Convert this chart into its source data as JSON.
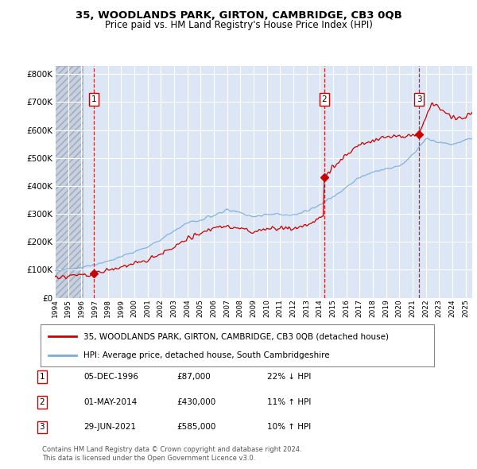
{
  "title": "35, WOODLANDS PARK, GIRTON, CAMBRIDGE, CB3 0QB",
  "subtitle": "Price paid vs. HM Land Registry's House Price Index (HPI)",
  "legend_line1": "35, WOODLANDS PARK, GIRTON, CAMBRIDGE, CB3 0QB (detached house)",
  "legend_line2": "HPI: Average price, detached house, South Cambridgeshire",
  "footer1": "Contains HM Land Registry data © Crown copyright and database right 2024.",
  "footer2": "This data is licensed under the Open Government Licence v3.0.",
  "transactions": [
    {
      "num": 1,
      "date": "05-DEC-1996",
      "price": 87000,
      "pct": "22%",
      "dir": "↓",
      "year_x": 1996.92
    },
    {
      "num": 2,
      "date": "01-MAY-2014",
      "price": 430000,
      "pct": "11%",
      "dir": "↑",
      "year_x": 2014.33
    },
    {
      "num": 3,
      "date": "29-JUN-2021",
      "price": 585000,
      "pct": "10%",
      "dir": "↑",
      "year_x": 2021.49
    }
  ],
  "xlim": [
    1994.0,
    2025.5
  ],
  "ylim": [
    0,
    830000
  ],
  "yticks": [
    0,
    100000,
    200000,
    300000,
    400000,
    500000,
    600000,
    700000,
    800000
  ],
  "ytick_labels": [
    "£0",
    "£100K",
    "£200K",
    "£300K",
    "£400K",
    "£500K",
    "£600K",
    "£700K",
    "£800K"
  ],
  "hatch_color": "#c8d0e0",
  "plot_bg": "#dce6f5",
  "grid_color": "#ffffff",
  "red_color": "#cc0000",
  "blue_color": "#7aaddb",
  "marker_red": "#cc0000",
  "vline_color": "#cc0000"
}
